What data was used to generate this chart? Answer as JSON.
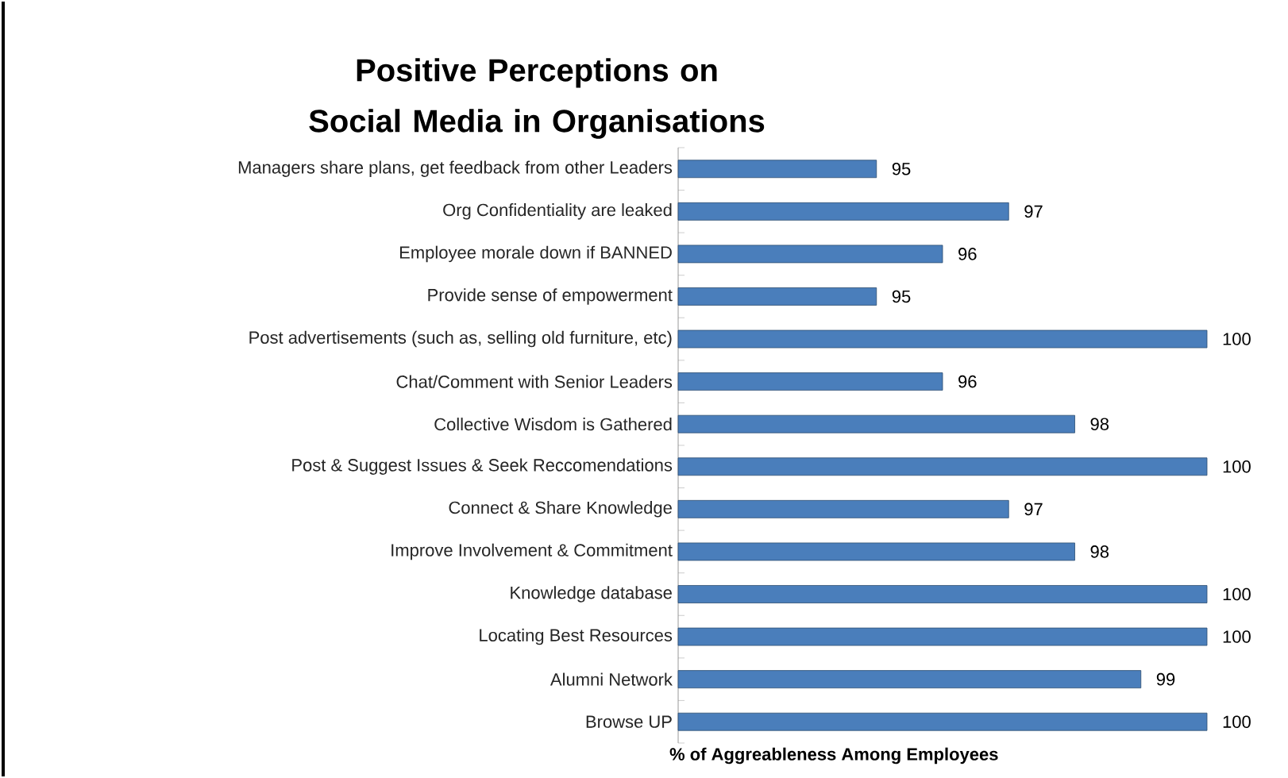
{
  "chart_data": {
    "type": "bar",
    "orientation": "horizontal",
    "title": "Positive Perceptions on Social Media in Organisations",
    "xlabel": "% of Aggreableness Among Employees",
    "categories": [
      "Managers share plans, get feedback from other Leaders",
      "Org Confidentiality are leaked",
      "Employee morale down if BANNED",
      "Provide sense of empowerment",
      "Post advertisements (such as, selling old furniture, etc)",
      "Chat/Comment with Senior Leaders",
      "Collective Wisdom is Gathered",
      "Post & Suggest Issues & Seek Reccomendations",
      "Connect & Share Knowledge",
      "Improve Involvement & Commitment",
      "Knowledge database",
      "Locating Best Resources",
      "Alumni Network",
      "Browse UP"
    ],
    "values": [
      95,
      97,
      96,
      95,
      100,
      96,
      98,
      100,
      97,
      98,
      100,
      100,
      99,
      100
    ],
    "color": "#4a7ebb",
    "xlim": [
      92,
      100
    ],
    "data_labels": true,
    "tick_labels": "y"
  }
}
